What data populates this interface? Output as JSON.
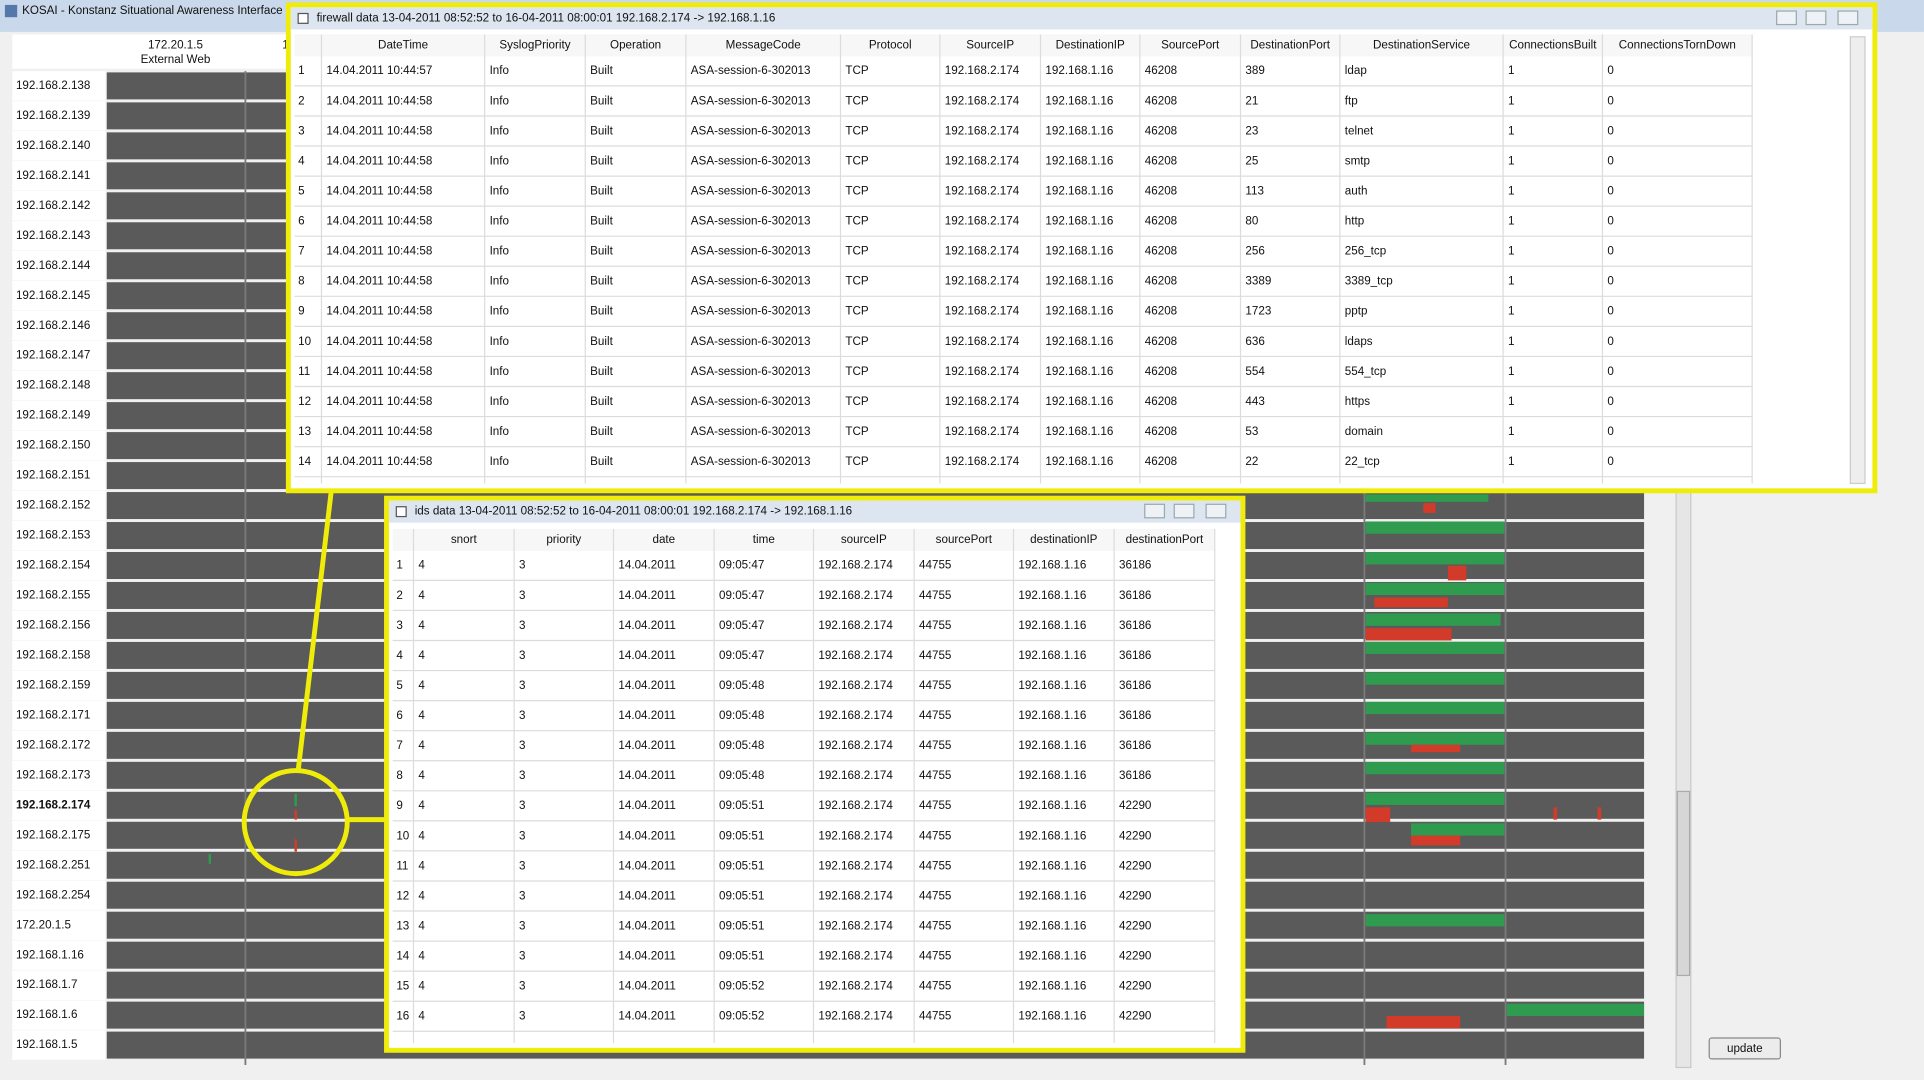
{
  "window": {
    "title": "KOSAI - Konstanz Situational Awareness Interface"
  },
  "columns": [
    {
      "ip": "172.20.1.5",
      "role": "External Web"
    },
    {
      "ip": "1"
    }
  ],
  "hosts": [
    {
      "label": "192.168.2.138"
    },
    {
      "label": "192.168.2.139"
    },
    {
      "label": "192.168.2.140"
    },
    {
      "label": "192.168.2.141"
    },
    {
      "label": "192.168.2.142"
    },
    {
      "label": "192.168.2.143"
    },
    {
      "label": "192.168.2.144"
    },
    {
      "label": "192.168.2.145"
    },
    {
      "label": "192.168.2.146"
    },
    {
      "label": "192.168.2.147"
    },
    {
      "label": "192.168.2.148"
    },
    {
      "label": "192.168.2.149"
    },
    {
      "label": "192.168.2.150"
    },
    {
      "label": "192.168.2.151"
    },
    {
      "label": "192.168.2.152"
    },
    {
      "label": "192.168.2.153"
    },
    {
      "label": "192.168.2.154"
    },
    {
      "label": "192.168.2.155"
    },
    {
      "label": "192.168.2.156"
    },
    {
      "label": "192.168.2.158"
    },
    {
      "label": "192.168.2.159"
    },
    {
      "label": "192.168.2.171",
      "color": "#e8231e"
    },
    {
      "label": "192.168.2.172",
      "color": "#e8231e"
    },
    {
      "label": "192.168.2.173",
      "color": "#e8231e"
    },
    {
      "label": "192.168.2.174",
      "color": "#e8231e",
      "bold": true
    },
    {
      "label": "192.168.2.175",
      "color": "#e8231e"
    },
    {
      "label": "192.168.2.251"
    },
    {
      "label": "192.168.2.254"
    },
    {
      "label": "172.20.1.5"
    },
    {
      "label": "192.168.1.16"
    },
    {
      "label": "192.168.1.7"
    },
    {
      "label": "192.168.1.6"
    },
    {
      "label": "192.168.1.5"
    }
  ],
  "firewall": {
    "title": "firewall data 13-04-2011 08:52:52 to 16-04-2011 08:00:01 192.168.2.174 -> 192.168.1.16",
    "headers": [
      "DateTime",
      "SyslogPriority",
      "Operation",
      "MessageCode",
      "Protocol",
      "SourceIP",
      "DestinationIP",
      "SourcePort",
      "DestinationPort",
      "DestinationService",
      "ConnectionsBuilt",
      "ConnectionsTornDown"
    ],
    "rows": [
      [
        "1",
        "14.04.2011 10:44:57",
        "Info",
        "Built",
        "ASA-session-6-302013",
        "TCP",
        "192.168.2.174",
        "192.168.1.16",
        "46208",
        "389",
        "ldap",
        "1",
        "0"
      ],
      [
        "2",
        "14.04.2011 10:44:58",
        "Info",
        "Built",
        "ASA-session-6-302013",
        "TCP",
        "192.168.2.174",
        "192.168.1.16",
        "46208",
        "21",
        "ftp",
        "1",
        "0"
      ],
      [
        "3",
        "14.04.2011 10:44:58",
        "Info",
        "Built",
        "ASA-session-6-302013",
        "TCP",
        "192.168.2.174",
        "192.168.1.16",
        "46208",
        "23",
        "telnet",
        "1",
        "0"
      ],
      [
        "4",
        "14.04.2011 10:44:58",
        "Info",
        "Built",
        "ASA-session-6-302013",
        "TCP",
        "192.168.2.174",
        "192.168.1.16",
        "46208",
        "25",
        "smtp",
        "1",
        "0"
      ],
      [
        "5",
        "14.04.2011 10:44:58",
        "Info",
        "Built",
        "ASA-session-6-302013",
        "TCP",
        "192.168.2.174",
        "192.168.1.16",
        "46208",
        "113",
        "auth",
        "1",
        "0"
      ],
      [
        "6",
        "14.04.2011 10:44:58",
        "Info",
        "Built",
        "ASA-session-6-302013",
        "TCP",
        "192.168.2.174",
        "192.168.1.16",
        "46208",
        "80",
        "http",
        "1",
        "0"
      ],
      [
        "7",
        "14.04.2011 10:44:58",
        "Info",
        "Built",
        "ASA-session-6-302013",
        "TCP",
        "192.168.2.174",
        "192.168.1.16",
        "46208",
        "256",
        "256_tcp",
        "1",
        "0"
      ],
      [
        "8",
        "14.04.2011 10:44:58",
        "Info",
        "Built",
        "ASA-session-6-302013",
        "TCP",
        "192.168.2.174",
        "192.168.1.16",
        "46208",
        "3389",
        "3389_tcp",
        "1",
        "0"
      ],
      [
        "9",
        "14.04.2011 10:44:58",
        "Info",
        "Built",
        "ASA-session-6-302013",
        "TCP",
        "192.168.2.174",
        "192.168.1.16",
        "46208",
        "1723",
        "pptp",
        "1",
        "0"
      ],
      [
        "10",
        "14.04.2011 10:44:58",
        "Info",
        "Built",
        "ASA-session-6-302013",
        "TCP",
        "192.168.2.174",
        "192.168.1.16",
        "46208",
        "636",
        "ldaps",
        "1",
        "0"
      ],
      [
        "11",
        "14.04.2011 10:44:58",
        "Info",
        "Built",
        "ASA-session-6-302013",
        "TCP",
        "192.168.2.174",
        "192.168.1.16",
        "46208",
        "554",
        "554_tcp",
        "1",
        "0"
      ],
      [
        "12",
        "14.04.2011 10:44:58",
        "Info",
        "Built",
        "ASA-session-6-302013",
        "TCP",
        "192.168.2.174",
        "192.168.1.16",
        "46208",
        "443",
        "https",
        "1",
        "0"
      ],
      [
        "13",
        "14.04.2011 10:44:58",
        "Info",
        "Built",
        "ASA-session-6-302013",
        "TCP",
        "192.168.2.174",
        "192.168.1.16",
        "46208",
        "53",
        "domain",
        "1",
        "0"
      ],
      [
        "14",
        "14.04.2011 10:44:58",
        "Info",
        "Built",
        "ASA-session-6-302013",
        "TCP",
        "192.168.2.174",
        "192.168.1.16",
        "46208",
        "22",
        "22_tcp",
        "1",
        "0"
      ]
    ]
  },
  "ids": {
    "title": "ids data 13-04-2011 08:52:52 to 16-04-2011 08:00:01 192.168.2.174 -> 192.168.1.16",
    "headers": [
      "snort",
      "priority",
      "date",
      "time",
      "sourceIP",
      "sourcePort",
      "destinationIP",
      "destinationPort"
    ],
    "rows": [
      [
        "1",
        "4",
        "3",
        "14.04.2011",
        "09:05:47",
        "192.168.2.174",
        "44755",
        "192.168.1.16",
        "36186"
      ],
      [
        "2",
        "4",
        "3",
        "14.04.2011",
        "09:05:47",
        "192.168.2.174",
        "44755",
        "192.168.1.16",
        "36186"
      ],
      [
        "3",
        "4",
        "3",
        "14.04.2011",
        "09:05:47",
        "192.168.2.174",
        "44755",
        "192.168.1.16",
        "36186"
      ],
      [
        "4",
        "4",
        "3",
        "14.04.2011",
        "09:05:47",
        "192.168.2.174",
        "44755",
        "192.168.1.16",
        "36186"
      ],
      [
        "5",
        "4",
        "3",
        "14.04.2011",
        "09:05:48",
        "192.168.2.174",
        "44755",
        "192.168.1.16",
        "36186"
      ],
      [
        "6",
        "4",
        "3",
        "14.04.2011",
        "09:05:48",
        "192.168.2.174",
        "44755",
        "192.168.1.16",
        "36186"
      ],
      [
        "7",
        "4",
        "3",
        "14.04.2011",
        "09:05:48",
        "192.168.2.174",
        "44755",
        "192.168.1.16",
        "36186"
      ],
      [
        "8",
        "4",
        "3",
        "14.04.2011",
        "09:05:48",
        "192.168.2.174",
        "44755",
        "192.168.1.16",
        "36186"
      ],
      [
        "9",
        "4",
        "3",
        "14.04.2011",
        "09:05:51",
        "192.168.2.174",
        "44755",
        "192.168.1.16",
        "42290"
      ],
      [
        "10",
        "4",
        "3",
        "14.04.2011",
        "09:05:51",
        "192.168.2.174",
        "44755",
        "192.168.1.16",
        "42290"
      ],
      [
        "11",
        "4",
        "3",
        "14.04.2011",
        "09:05:51",
        "192.168.2.174",
        "44755",
        "192.168.1.16",
        "42290"
      ],
      [
        "12",
        "4",
        "3",
        "14.04.2011",
        "09:05:51",
        "192.168.2.174",
        "44755",
        "192.168.1.16",
        "42290"
      ],
      [
        "13",
        "4",
        "3",
        "14.04.2011",
        "09:05:51",
        "192.168.2.174",
        "44755",
        "192.168.1.16",
        "42290"
      ],
      [
        "14",
        "4",
        "3",
        "14.04.2011",
        "09:05:51",
        "192.168.2.174",
        "44755",
        "192.168.1.16",
        "42290"
      ],
      [
        "15",
        "4",
        "3",
        "14.04.2011",
        "09:05:52",
        "192.168.2.174",
        "44755",
        "192.168.1.16",
        "42290"
      ],
      [
        "16",
        "4",
        "3",
        "14.04.2011",
        "09:05:52",
        "192.168.2.174",
        "44755",
        "192.168.1.16",
        "42290"
      ]
    ]
  },
  "update_button": "update"
}
